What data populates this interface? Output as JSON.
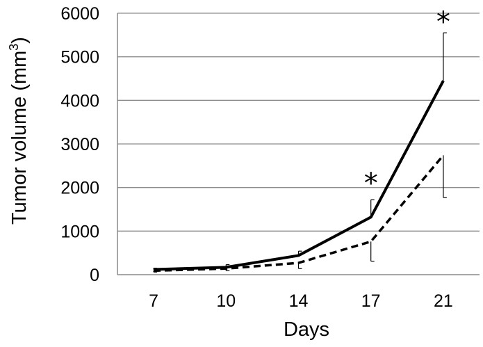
{
  "chart_data": {
    "type": "line",
    "title": "",
    "xlabel": "Days",
    "ylabel_main": "Tumor volume (mm",
    "ylabel_sup": "3",
    "ylabel_close": ")",
    "categories": [
      "7",
      "10",
      "14",
      "17",
      "21"
    ],
    "ylim": [
      0,
      6000
    ],
    "yticks": [
      "0",
      "1000",
      "2000",
      "3000",
      "4000",
      "5000",
      "6000"
    ],
    "grid": true,
    "legend": "none",
    "series": [
      {
        "style": "solid",
        "color": "#000000",
        "values": [
          120,
          170,
          440,
          1320,
          4450
        ],
        "error_plus": [
          30,
          60,
          100,
          400,
          1100
        ]
      },
      {
        "style": "dashed",
        "color": "#000000",
        "values": [
          90,
          140,
          270,
          760,
          2740
        ],
        "error_minus": [
          30,
          50,
          130,
          450,
          970
        ]
      }
    ],
    "annotations": [
      {
        "text": "*",
        "category": "17"
      },
      {
        "text": "*",
        "category": "21"
      }
    ]
  }
}
